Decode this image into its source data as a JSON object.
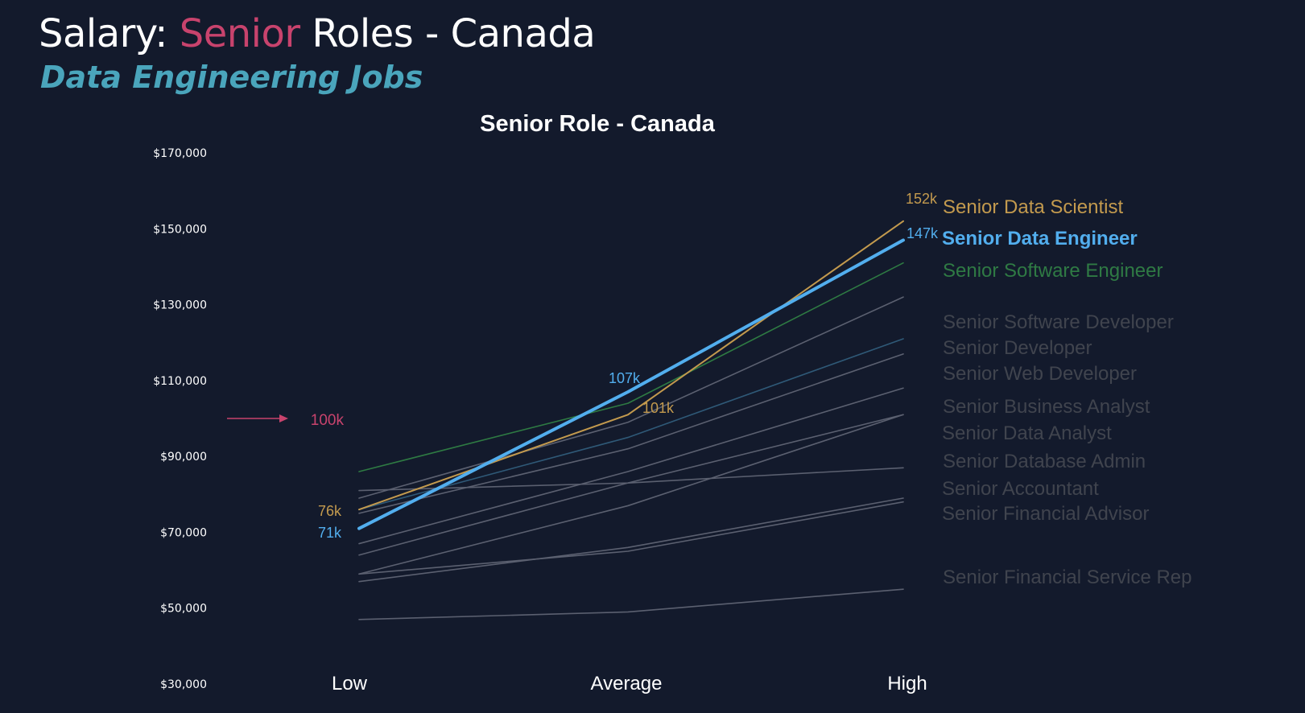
{
  "header": {
    "title_prefix": "Salary: ",
    "title_highlight": "Senior",
    "title_suffix": " Roles - Canada",
    "subtitle": "Data Engineering Jobs"
  },
  "colors": {
    "background": "#131a2c",
    "title_highlight": "#c8436d",
    "subtitle": "#4aa5bc",
    "threshold": "#c8436d",
    "gridless_text": "#ffffff"
  },
  "chart_data": {
    "type": "line",
    "title": "Senior Role - Canada",
    "xlabel": "",
    "ylabel": "",
    "categories": [
      "Low",
      "Average",
      "High"
    ],
    "ylim": [
      30000,
      170000
    ],
    "y_ticks": [
      {
        "value": 170000,
        "label": "$170,000"
      },
      {
        "value": 150000,
        "label": "$150,000"
      },
      {
        "value": 130000,
        "label": "$130,000"
      },
      {
        "value": 110000,
        "label": "$110,000"
      },
      {
        "value": 90000,
        "label": "$90,000"
      },
      {
        "value": 70000,
        "label": "$70,000"
      },
      {
        "value": 50000,
        "label": "$50,000"
      },
      {
        "value": 30000,
        "label": "$30,000"
      }
    ],
    "grid": false,
    "legend": "right-end-labels",
    "threshold": {
      "value": 100000,
      "label": "100k"
    },
    "series": [
      {
        "name": "Senior Data Scientist",
        "values": [
          76000,
          101000,
          152000
        ],
        "color": "#c39a4e",
        "label_color": "#c39a4e",
        "point_labels": [
          "76k",
          "101k",
          "152k"
        ],
        "highlight": true
      },
      {
        "name": "Senior Data Engineer",
        "values": [
          71000,
          107000,
          147000
        ],
        "color": "#52aeee",
        "label_color": "#52aeee",
        "point_labels": [
          "71k",
          "107k",
          "147k"
        ],
        "highlight": true,
        "primary": true
      },
      {
        "name": "Senior Software Engineer",
        "values": [
          86000,
          104000,
          141000
        ],
        "color": "#2e7a43",
        "label_color": "#2f7a44",
        "highlight": false
      },
      {
        "name": "Senior Software Developer",
        "values": [
          79000,
          99000,
          132000
        ],
        "color": "#5b6070",
        "label_color": "#40444e"
      },
      {
        "name": "Senior Developer",
        "values": [
          76000,
          95000,
          121000
        ],
        "color": "#2f5977",
        "label_color": "#40444e"
      },
      {
        "name": "Senior Web Developer",
        "values": [
          75000,
          92000,
          117000
        ],
        "color": "#5b6070",
        "label_color": "#40444e"
      },
      {
        "name": "Senior Business Analyst",
        "values": [
          67000,
          86000,
          108000
        ],
        "color": "#5b6070",
        "label_color": "#40444e"
      },
      {
        "name": "Senior Data Analyst",
        "values": [
          64000,
          83000,
          101000
        ],
        "color": "#5b6070",
        "label_color": "#40444e"
      },
      {
        "name": "Senior Database Admin",
        "values": [
          59000,
          77000,
          101000
        ],
        "color": "#5b6070",
        "label_color": "#40444e"
      },
      {
        "name": "Senior Accountant",
        "values": [
          81000,
          83000,
          87000
        ],
        "color": "#5b6070",
        "label_color": "#40444e"
      },
      {
        "name": "Senior Financial Advisor",
        "values": [
          57000,
          66000,
          79000
        ],
        "color": "#5b6070",
        "label_color": "#40444e"
      },
      {
        "name": "",
        "values": [
          59000,
          65000,
          78000
        ],
        "color": "#5b6070",
        "label_color": "#40444e"
      },
      {
        "name": "Senior Financial Service Rep",
        "values": [
          47000,
          49000,
          55000
        ],
        "color": "#5b6070",
        "label_color": "#40444e"
      }
    ]
  }
}
